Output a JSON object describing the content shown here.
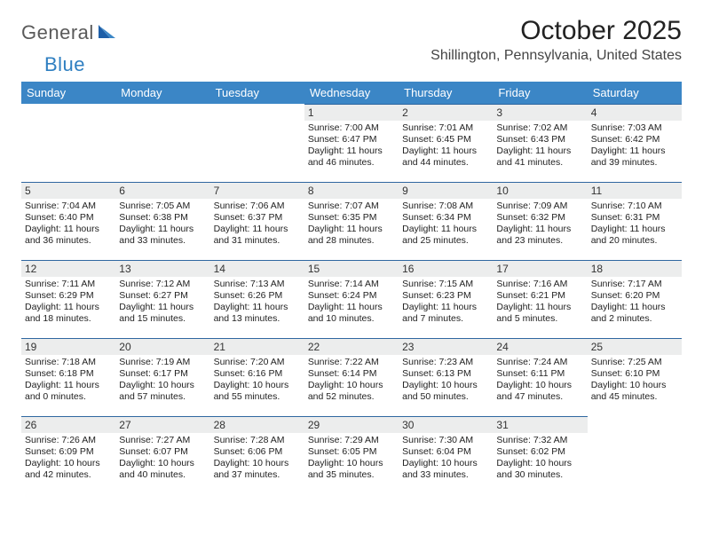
{
  "logo": {
    "text1": "General",
    "text2": "Blue"
  },
  "title": "October 2025",
  "location": "Shillington, Pennsylvania, United States",
  "colors": {
    "header_bg": "#3b86c6",
    "header_text": "#ffffff",
    "daynum_bg": "#eceded",
    "daynum_border": "#2f67a0",
    "logo_gray": "#5a5a5a",
    "logo_blue": "#2f7fc1",
    "text": "#222222",
    "background": "#ffffff"
  },
  "day_headers": [
    "Sunday",
    "Monday",
    "Tuesday",
    "Wednesday",
    "Thursday",
    "Friday",
    "Saturday"
  ],
  "weeks": [
    [
      null,
      null,
      null,
      {
        "n": "1",
        "sr": "7:00 AM",
        "ss": "6:47 PM",
        "dh": "11",
        "dm": "46"
      },
      {
        "n": "2",
        "sr": "7:01 AM",
        "ss": "6:45 PM",
        "dh": "11",
        "dm": "44"
      },
      {
        "n": "3",
        "sr": "7:02 AM",
        "ss": "6:43 PM",
        "dh": "11",
        "dm": "41"
      },
      {
        "n": "4",
        "sr": "7:03 AM",
        "ss": "6:42 PM",
        "dh": "11",
        "dm": "39"
      }
    ],
    [
      {
        "n": "5",
        "sr": "7:04 AM",
        "ss": "6:40 PM",
        "dh": "11",
        "dm": "36"
      },
      {
        "n": "6",
        "sr": "7:05 AM",
        "ss": "6:38 PM",
        "dh": "11",
        "dm": "33"
      },
      {
        "n": "7",
        "sr": "7:06 AM",
        "ss": "6:37 PM",
        "dh": "11",
        "dm": "31"
      },
      {
        "n": "8",
        "sr": "7:07 AM",
        "ss": "6:35 PM",
        "dh": "11",
        "dm": "28"
      },
      {
        "n": "9",
        "sr": "7:08 AM",
        "ss": "6:34 PM",
        "dh": "11",
        "dm": "25"
      },
      {
        "n": "10",
        "sr": "7:09 AM",
        "ss": "6:32 PM",
        "dh": "11",
        "dm": "23"
      },
      {
        "n": "11",
        "sr": "7:10 AM",
        "ss": "6:31 PM",
        "dh": "11",
        "dm": "20"
      }
    ],
    [
      {
        "n": "12",
        "sr": "7:11 AM",
        "ss": "6:29 PM",
        "dh": "11",
        "dm": "18"
      },
      {
        "n": "13",
        "sr": "7:12 AM",
        "ss": "6:27 PM",
        "dh": "11",
        "dm": "15"
      },
      {
        "n": "14",
        "sr": "7:13 AM",
        "ss": "6:26 PM",
        "dh": "11",
        "dm": "13"
      },
      {
        "n": "15",
        "sr": "7:14 AM",
        "ss": "6:24 PM",
        "dh": "11",
        "dm": "10"
      },
      {
        "n": "16",
        "sr": "7:15 AM",
        "ss": "6:23 PM",
        "dh": "11",
        "dm": "7"
      },
      {
        "n": "17",
        "sr": "7:16 AM",
        "ss": "6:21 PM",
        "dh": "11",
        "dm": "5"
      },
      {
        "n": "18",
        "sr": "7:17 AM",
        "ss": "6:20 PM",
        "dh": "11",
        "dm": "2"
      }
    ],
    [
      {
        "n": "19",
        "sr": "7:18 AM",
        "ss": "6:18 PM",
        "dh": "11",
        "dm": "0"
      },
      {
        "n": "20",
        "sr": "7:19 AM",
        "ss": "6:17 PM",
        "dh": "10",
        "dm": "57"
      },
      {
        "n": "21",
        "sr": "7:20 AM",
        "ss": "6:16 PM",
        "dh": "10",
        "dm": "55"
      },
      {
        "n": "22",
        "sr": "7:22 AM",
        "ss": "6:14 PM",
        "dh": "10",
        "dm": "52"
      },
      {
        "n": "23",
        "sr": "7:23 AM",
        "ss": "6:13 PM",
        "dh": "10",
        "dm": "50"
      },
      {
        "n": "24",
        "sr": "7:24 AM",
        "ss": "6:11 PM",
        "dh": "10",
        "dm": "47"
      },
      {
        "n": "25",
        "sr": "7:25 AM",
        "ss": "6:10 PM",
        "dh": "10",
        "dm": "45"
      }
    ],
    [
      {
        "n": "26",
        "sr": "7:26 AM",
        "ss": "6:09 PM",
        "dh": "10",
        "dm": "42"
      },
      {
        "n": "27",
        "sr": "7:27 AM",
        "ss": "6:07 PM",
        "dh": "10",
        "dm": "40"
      },
      {
        "n": "28",
        "sr": "7:28 AM",
        "ss": "6:06 PM",
        "dh": "10",
        "dm": "37"
      },
      {
        "n": "29",
        "sr": "7:29 AM",
        "ss": "6:05 PM",
        "dh": "10",
        "dm": "35"
      },
      {
        "n": "30",
        "sr": "7:30 AM",
        "ss": "6:04 PM",
        "dh": "10",
        "dm": "33"
      },
      {
        "n": "31",
        "sr": "7:32 AM",
        "ss": "6:02 PM",
        "dh": "10",
        "dm": "30"
      },
      null
    ]
  ],
  "labels": {
    "sunrise": "Sunrise:",
    "sunset": "Sunset:",
    "daylight": "Daylight:",
    "hours": "hours",
    "and": "and",
    "minutes": "minutes."
  }
}
